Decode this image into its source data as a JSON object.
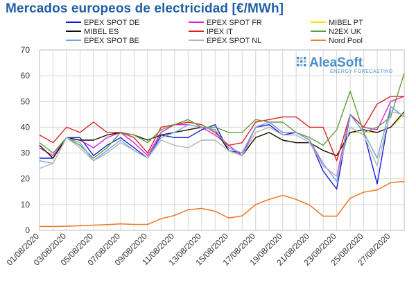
{
  "chart_data": {
    "type": "line",
    "title": "Mercados europeos de electricidad [€/MWh]",
    "ylim": [
      0,
      70
    ],
    "yticks": [
      0,
      10,
      20,
      30,
      40,
      50,
      60,
      70
    ],
    "x": [
      "01/08/2020",
      "02/08/2020",
      "03/08/2020",
      "04/08/2020",
      "05/08/2020",
      "06/08/2020",
      "07/08/2020",
      "08/08/2020",
      "09/08/2020",
      "10/08/2020",
      "11/08/2020",
      "12/08/2020",
      "13/08/2020",
      "14/08/2020",
      "15/08/2020",
      "16/08/2020",
      "17/08/2020",
      "18/08/2020",
      "19/08/2020",
      "20/08/2020",
      "21/08/2020",
      "22/08/2020",
      "23/08/2020",
      "24/08/2020",
      "25/08/2020",
      "26/08/2020",
      "27/08/2020",
      "28/08/2020"
    ],
    "xtick_labels": [
      "01/08/2020",
      "03/08/2020",
      "05/08/2020",
      "07/08/2020",
      "09/08/2020",
      "11/08/2020",
      "13/08/2020",
      "15/08/2020",
      "17/08/2020",
      "19/08/2020",
      "21/08/2020",
      "23/08/2020",
      "25/08/2020",
      "27/08/2020"
    ],
    "grid": true,
    "legend_position": "top",
    "series": [
      {
        "name": "EPEX SPOT DE",
        "color": "#1a1adb",
        "values": [
          28,
          28,
          36,
          36,
          29,
          33,
          36,
          32,
          28,
          37,
          36,
          36,
          39,
          41,
          31,
          30,
          40,
          41,
          37,
          38,
          35,
          23,
          16,
          45,
          38,
          18,
          48,
          44
        ]
      },
      {
        "name": "EPEX SPOT FR",
        "color": "#e020e0",
        "values": [
          32,
          29,
          36,
          35,
          32,
          36,
          38,
          34,
          29,
          38,
          41,
          41,
          40,
          37,
          33,
          29,
          40,
          42,
          38,
          38,
          35,
          25,
          21,
          45,
          40,
          39,
          50,
          52
        ]
      },
      {
        "name": "MIBEL PT",
        "color": "#f0e800",
        "values": [
          33,
          28,
          36,
          35,
          35,
          37,
          38,
          37,
          35,
          37,
          38,
          39,
          40,
          39,
          31,
          29,
          36,
          38,
          35,
          34,
          34,
          31,
          29,
          38,
          38,
          38,
          40,
          45
        ]
      },
      {
        "name": "MIBEL ES",
        "color": "#111111",
        "values": [
          33,
          28,
          36,
          35,
          35,
          37,
          38,
          37,
          35,
          37,
          38,
          39,
          40,
          39,
          31,
          29,
          36,
          38,
          35,
          34,
          34,
          31,
          29,
          38,
          39,
          38,
          40,
          46
        ]
      },
      {
        "name": "IPEX IT",
        "color": "#e02020",
        "values": [
          37,
          34,
          40,
          38,
          42,
          38,
          38,
          36,
          30,
          40,
          41,
          42,
          41,
          38,
          33,
          34,
          42,
          43,
          44,
          44,
          40,
          40,
          27,
          45,
          40,
          49,
          52,
          52
        ]
      },
      {
        "name": "N2EX UK",
        "color": "#5e9e3a",
        "values": [
          34,
          30,
          36,
          33,
          28,
          32,
          38,
          37,
          34,
          39,
          41,
          43,
          40,
          40,
          38,
          38,
          43,
          42,
          42,
          38,
          36,
          33,
          39,
          54,
          38,
          40,
          44,
          61
        ]
      },
      {
        "name": "EPEX SPOT BE",
        "color": "#6fa8dc",
        "values": [
          27,
          26,
          36,
          34,
          27,
          31,
          35,
          31,
          28,
          36,
          38,
          41,
          40,
          39,
          32,
          30,
          40,
          42,
          38,
          38,
          35,
          26,
          19,
          45,
          38,
          28,
          48,
          44
        ]
      },
      {
        "name": "EPEX SPOT NL",
        "color": "#b4b4b4",
        "values": [
          24,
          26,
          36,
          32,
          27,
          30,
          34,
          31,
          28,
          35,
          33,
          32,
          35,
          35,
          31,
          29,
          38,
          40,
          37,
          37,
          34,
          25,
          21,
          40,
          37,
          25,
          46,
          45
        ]
      },
      {
        "name": "Nord Pool",
        "color": "#ef7d2c",
        "values": [
          1.5,
          1.5,
          1.6,
          1.8,
          2.0,
          2.2,
          2.5,
          2.3,
          2.3,
          4.5,
          5.8,
          8,
          8.5,
          7.4,
          4.8,
          5.6,
          10,
          12,
          13.6,
          12,
          9.8,
          5.5,
          5.5,
          12.5,
          14.8,
          15.7,
          18.5,
          19
        ]
      }
    ]
  },
  "logo": {
    "brand": "AleaSoft",
    "tagline": "ENERGY FORECASTING",
    "colors": {
      "primary": "#4a90c8",
      "dots": "#9ec2e0"
    }
  }
}
